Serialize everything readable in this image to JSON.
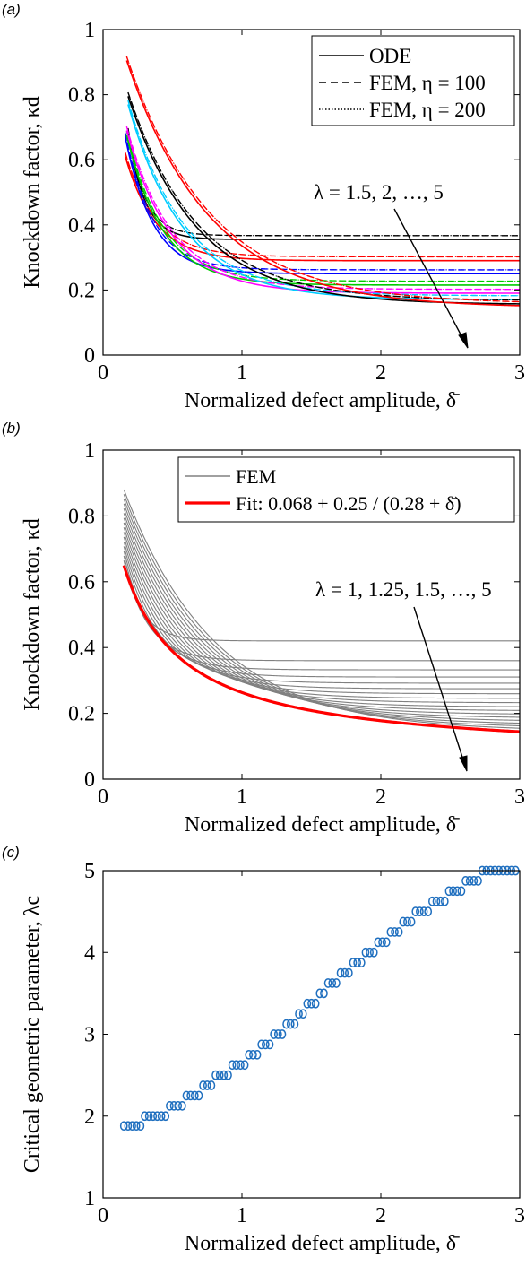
{
  "chart_data": [
    {
      "panel": "(a)",
      "type": "line",
      "xlabel": "Normalized defect amplitude, δ̄",
      "ylabel": "Knockdown factor, κd",
      "xlim": [
        0,
        3
      ],
      "ylim": [
        0,
        1
      ],
      "xticks": [
        "0",
        "1",
        "2",
        "3"
      ],
      "yticks": [
        "0",
        "0.2",
        "0.4",
        "0.6",
        "0.8",
        "1"
      ],
      "grid": false,
      "legend_position": "top-right",
      "legend": [
        {
          "label": "ODE",
          "style": "solid"
        },
        {
          "label": "FEM, η = 100",
          "style": "dashed"
        },
        {
          "label": "FEM, η = 200",
          "style": "dotted"
        }
      ],
      "annotation": "λ = 1.5, 2, …, 5",
      "series": [
        {
          "lambda": 1.5,
          "color": "#000000",
          "start_x": 0.18,
          "a": 0.355,
          "b": 0.33,
          "c": 0.12
        },
        {
          "lambda": 2.0,
          "color": "#ff0000",
          "start_x": 0.16,
          "a": 0.29,
          "b": 0.32,
          "c": 0.22
        },
        {
          "lambda": 2.5,
          "color": "#0000ff",
          "start_x": 0.16,
          "a": 0.25,
          "b": 0.42,
          "c": 0.2
        },
        {
          "lambda": 3.0,
          "color": "#00cc00",
          "start_x": 0.17,
          "a": 0.215,
          "b": 0.46,
          "c": 0.26
        },
        {
          "lambda": 3.5,
          "color": "#ff00ff",
          "start_x": 0.17,
          "a": 0.19,
          "b": 0.5,
          "c": 0.32
        },
        {
          "lambda": 4.0,
          "color": "#00ccff",
          "start_x": 0.18,
          "a": 0.17,
          "b": 0.6,
          "c": 0.4
        },
        {
          "lambda": 4.5,
          "color": "#000000",
          "start_x": 0.18,
          "a": 0.155,
          "b": 0.64,
          "c": 0.5
        },
        {
          "lambda": 5.0,
          "color": "#ff0000",
          "start_x": 0.17,
          "a": 0.145,
          "b": 0.76,
          "c": 0.6
        }
      ]
    },
    {
      "panel": "(b)",
      "type": "line",
      "xlabel": "Normalized defect amplitude, δ̄",
      "ylabel": "Knockdown factor, κd",
      "xlim": [
        0,
        3
      ],
      "ylim": [
        0,
        1
      ],
      "xticks": [
        "0",
        "1",
        "2",
        "3"
      ],
      "yticks": [
        "0",
        "0.2",
        "0.4",
        "0.6",
        "0.8",
        "1"
      ],
      "grid": false,
      "legend_position": "top-right",
      "legend": [
        {
          "label": "FEM",
          "color": "#808080"
        },
        {
          "label": "Fit: 0.068 + 0.25 / (0.28 + δ̄)",
          "color": "#ff0000"
        }
      ],
      "annotation": "λ = 1, 1.25, 1.5, …, 5",
      "fem_family": {
        "lambda_start": 1,
        "lambda_step": 0.25,
        "lambda_end": 5,
        "plateau_start": 0.42,
        "plateau_end": 0.145,
        "start_value_min": 0.65,
        "start_value_max": 0.88
      },
      "fit": {
        "const": 0.068,
        "num": 0.25,
        "offset": 0.28,
        "x_start": 0.15,
        "x_end": 3
      }
    },
    {
      "panel": "(c)",
      "type": "scatter",
      "xlabel": "Normalized defect amplitude, δ̄",
      "ylabel": "Critical geometric parameter, λc",
      "xlim": [
        0,
        3
      ],
      "ylim": [
        1,
        5
      ],
      "xticks": [
        "0",
        "1",
        "2",
        "3"
      ],
      "yticks": [
        "1",
        "2",
        "3",
        "4",
        "5"
      ],
      "grid": false,
      "marker_color": "#1f6fbf",
      "points": [
        [
          0.15,
          1.88
        ],
        [
          0.18,
          1.88
        ],
        [
          0.21,
          1.88
        ],
        [
          0.24,
          1.88
        ],
        [
          0.27,
          1.88
        ],
        [
          0.3,
          2
        ],
        [
          0.33,
          2
        ],
        [
          0.36,
          2
        ],
        [
          0.39,
          2
        ],
        [
          0.42,
          2
        ],
        [
          0.45,
          2
        ],
        [
          0.48,
          2.125
        ],
        [
          0.51,
          2.125
        ],
        [
          0.54,
          2.125
        ],
        [
          0.57,
          2.125
        ],
        [
          0.6,
          2.25
        ],
        [
          0.63,
          2.25
        ],
        [
          0.66,
          2.25
        ],
        [
          0.69,
          2.25
        ],
        [
          0.72,
          2.375
        ],
        [
          0.75,
          2.375
        ],
        [
          0.78,
          2.375
        ],
        [
          0.81,
          2.5
        ],
        [
          0.84,
          2.5
        ],
        [
          0.87,
          2.5
        ],
        [
          0.9,
          2.5
        ],
        [
          0.93,
          2.625
        ],
        [
          0.96,
          2.625
        ],
        [
          0.99,
          2.625
        ],
        [
          1.02,
          2.625
        ],
        [
          1.05,
          2.75
        ],
        [
          1.08,
          2.75
        ],
        [
          1.11,
          2.75
        ],
        [
          1.14,
          2.875
        ],
        [
          1.17,
          2.875
        ],
        [
          1.2,
          2.875
        ],
        [
          1.23,
          3
        ],
        [
          1.26,
          3
        ],
        [
          1.29,
          3
        ],
        [
          1.32,
          3.125
        ],
        [
          1.35,
          3.125
        ],
        [
          1.38,
          3.125
        ],
        [
          1.41,
          3.25
        ],
        [
          1.44,
          3.25
        ],
        [
          1.47,
          3.375
        ],
        [
          1.5,
          3.375
        ],
        [
          1.53,
          3.375
        ],
        [
          1.56,
          3.5
        ],
        [
          1.59,
          3.5
        ],
        [
          1.62,
          3.625
        ],
        [
          1.65,
          3.625
        ],
        [
          1.68,
          3.625
        ],
        [
          1.71,
          3.75
        ],
        [
          1.74,
          3.75
        ],
        [
          1.77,
          3.75
        ],
        [
          1.8,
          3.875
        ],
        [
          1.83,
          3.875
        ],
        [
          1.86,
          3.875
        ],
        [
          1.89,
          4
        ],
        [
          1.92,
          4
        ],
        [
          1.95,
          4
        ],
        [
          1.98,
          4.125
        ],
        [
          2.01,
          4.125
        ],
        [
          2.04,
          4.125
        ],
        [
          2.07,
          4.25
        ],
        [
          2.1,
          4.25
        ],
        [
          2.13,
          4.25
        ],
        [
          2.16,
          4.375
        ],
        [
          2.19,
          4.375
        ],
        [
          2.22,
          4.375
        ],
        [
          2.25,
          4.5
        ],
        [
          2.28,
          4.5
        ],
        [
          2.31,
          4.5
        ],
        [
          2.34,
          4.5
        ],
        [
          2.37,
          4.625
        ],
        [
          2.4,
          4.625
        ],
        [
          2.43,
          4.625
        ],
        [
          2.46,
          4.625
        ],
        [
          2.49,
          4.75
        ],
        [
          2.52,
          4.75
        ],
        [
          2.55,
          4.75
        ],
        [
          2.58,
          4.75
        ],
        [
          2.61,
          4.875
        ],
        [
          2.64,
          4.875
        ],
        [
          2.67,
          4.875
        ],
        [
          2.7,
          4.875
        ],
        [
          2.73,
          5
        ],
        [
          2.76,
          5
        ],
        [
          2.79,
          5
        ],
        [
          2.82,
          5
        ],
        [
          2.85,
          5
        ],
        [
          2.88,
          5
        ],
        [
          2.91,
          5
        ],
        [
          2.94,
          5
        ],
        [
          2.97,
          5
        ]
      ]
    }
  ]
}
